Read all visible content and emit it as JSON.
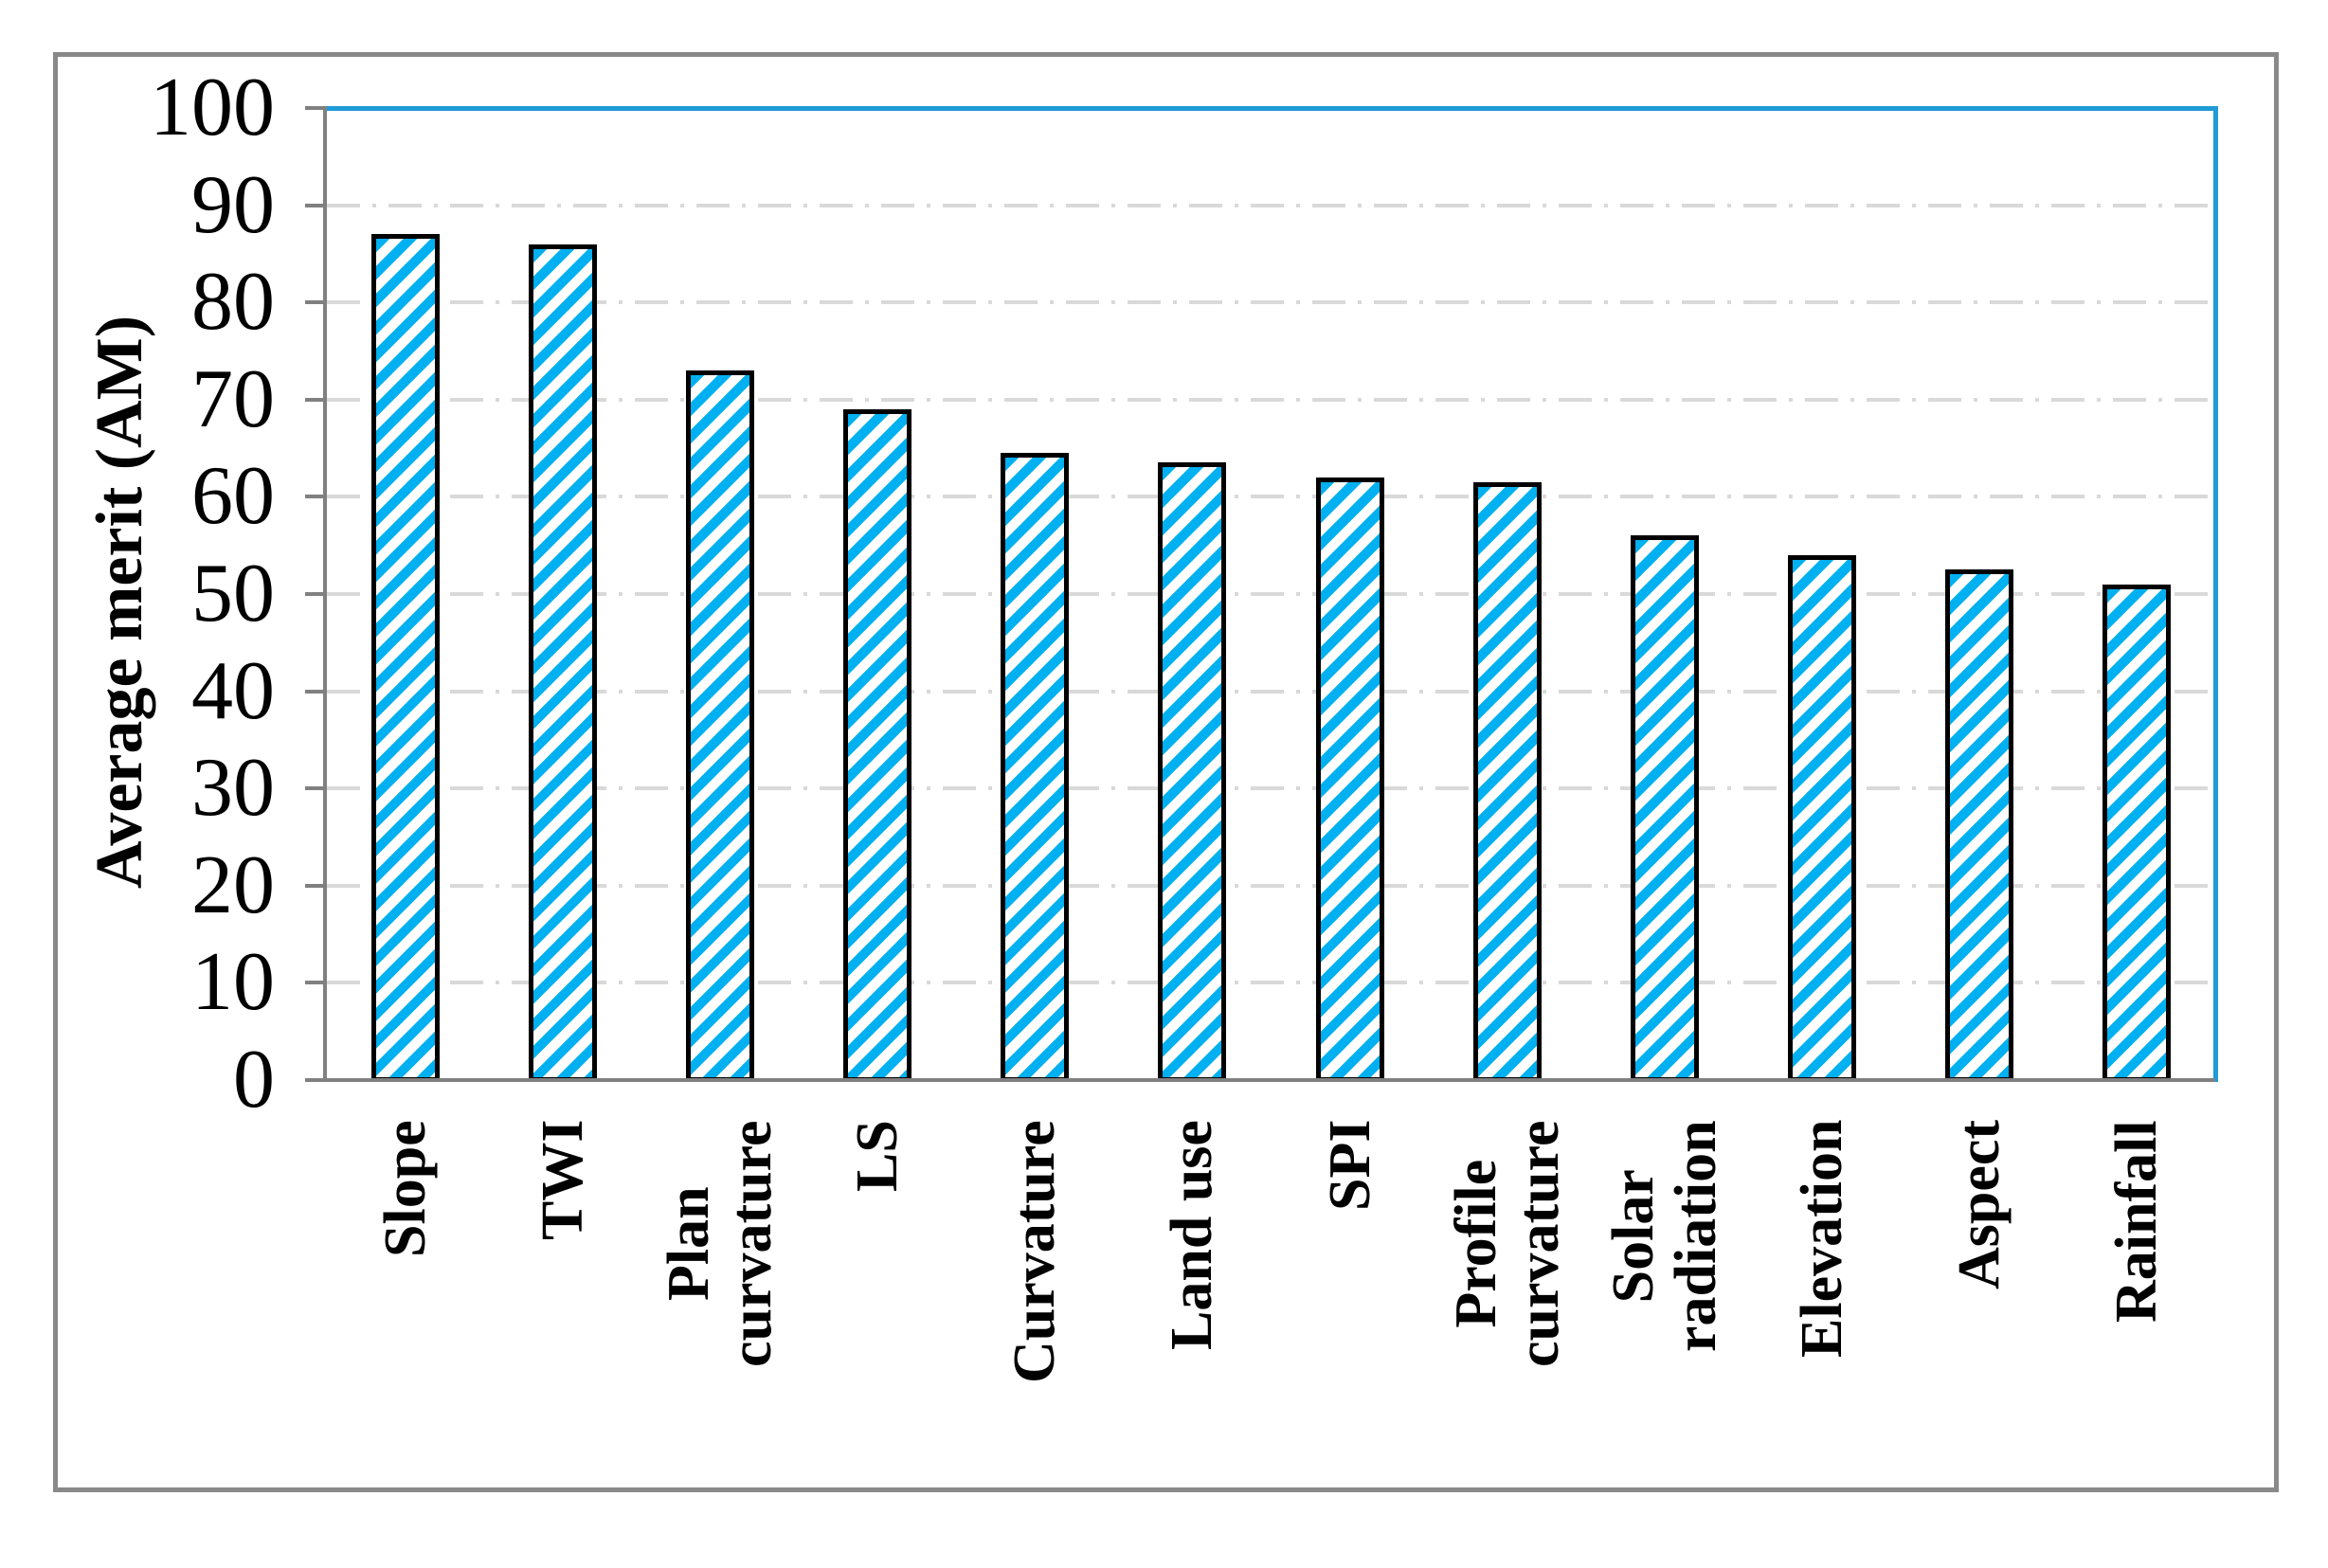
{
  "chart_data": {
    "type": "bar",
    "title": "",
    "xlabel": "",
    "ylabel": "Average merit (AM)",
    "categories": [
      "Slope",
      "TWI",
      "Plan\ncurvature",
      "LS",
      "Curvature",
      "Land use",
      "SPI",
      "Profile\ncurvature",
      "Solar\nradiation",
      "Elevation",
      "Aspect",
      "Rainfall"
    ],
    "values": [
      87,
      86,
      73,
      69,
      64.5,
      63.5,
      62,
      61.5,
      56,
      54,
      52.5,
      51
    ],
    "ylim": [
      0,
      100
    ],
    "yticks": [
      0,
      10,
      20,
      30,
      40,
      50,
      60,
      70,
      80,
      90,
      100
    ],
    "grid": "horizontal dash-dot gridlines",
    "legend_position": "none",
    "bar_style": "diagonal hatch, black outline",
    "colors": {
      "hatch": "#00B0F0",
      "bar_outline": "#000000",
      "plot_border": "#1F9BD7",
      "axis": "#808080",
      "gridline": "#D9D9D9",
      "frame": "#898989",
      "text": "#000000"
    }
  }
}
